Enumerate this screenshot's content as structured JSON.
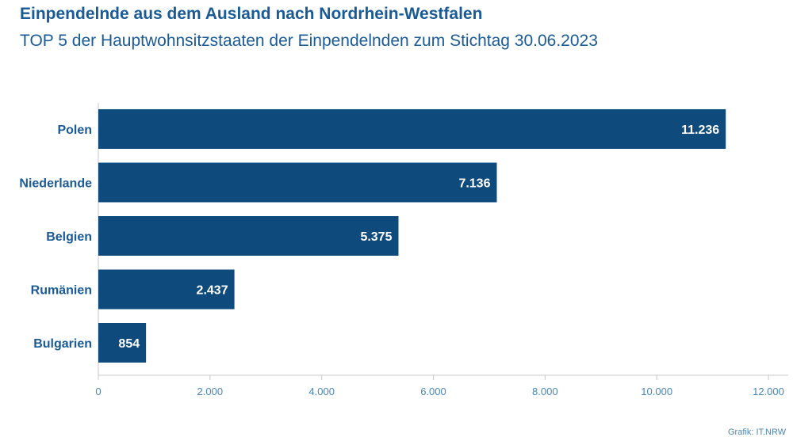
{
  "header": {
    "title": "Einpendelnde aus dem Ausland nach Nordrhein-Westfalen",
    "subtitle": "TOP 5 der Hauptwohnsitzstaaten der Einpendelnden zum Stichtag 30.06.2023"
  },
  "source": "Grafik: IT.NRW",
  "colors": {
    "bar": "#0f4a7d",
    "text": "#1a5a96",
    "axis": "#4a86b8"
  },
  "chart_data": {
    "type": "bar",
    "orientation": "horizontal",
    "categories": [
      "Polen",
      "Niederlande",
      "Belgien",
      "Rumänien",
      "Bulgarien"
    ],
    "values": [
      11236,
      7136,
      5375,
      2437,
      854
    ],
    "value_labels": [
      "11.236",
      "7.136",
      "5.375",
      "2.437",
      "854"
    ],
    "xlim": [
      0,
      12000
    ],
    "x_ticks": [
      0,
      2000,
      4000,
      6000,
      8000,
      10000,
      12000
    ],
    "x_tick_labels": [
      "0",
      "2.000",
      "4.000",
      "6.000",
      "8.000",
      "10.000",
      "12.000"
    ],
    "grid": false,
    "legend": "none",
    "title": "Einpendelnde aus dem Ausland nach Nordrhein-Westfalen",
    "subtitle": "TOP 5 der Hauptwohnsitzstaaten der Einpendelnden zum Stichtag 30.06.2023"
  }
}
